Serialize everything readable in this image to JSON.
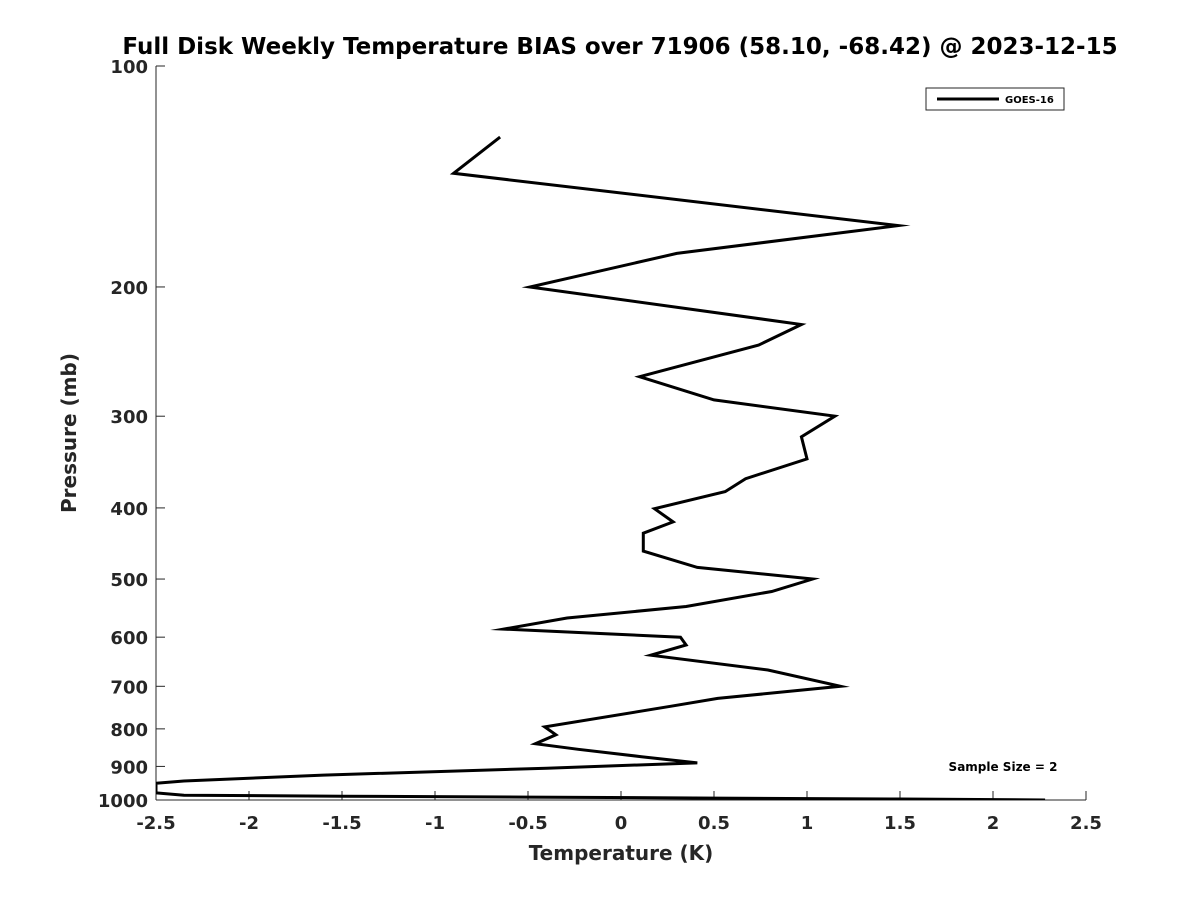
{
  "chart_data": {
    "type": "line",
    "title": "Full Disk Weekly Temperature BIAS over 71906 (58.10, -68.42) @ 2023-12-15",
    "xlabel": "Temperature (K)",
    "ylabel": "Pressure (mb)",
    "xlim": [
      -2.5,
      2.5
    ],
    "ylim": [
      1000,
      100
    ],
    "y_scale": "log",
    "y_reversed": true,
    "grid": false,
    "legend_position": "top-right",
    "x_ticks": [
      -2.5,
      -2,
      -1.5,
      -1,
      -0.5,
      0,
      0.5,
      1,
      1.5,
      2,
      2.5
    ],
    "x_tick_labels": [
      "-2.5",
      "-2",
      "-1.5",
      "-1",
      "-0.5",
      "0",
      "0.5",
      "1",
      "1.5",
      "2",
      "2.5"
    ],
    "y_ticks": [
      100,
      200,
      300,
      400,
      500,
      600,
      700,
      800,
      900,
      1000
    ],
    "y_tick_labels": [
      "100",
      "200",
      "300",
      "400",
      "500",
      "600",
      "700",
      "800",
      "900",
      "1000"
    ],
    "annotation": "Sample Size = 2",
    "series": [
      {
        "name": "GOES-16",
        "color": "#000000",
        "points": [
          {
            "x": -0.65,
            "y": 125
          },
          {
            "x": -0.9,
            "y": 140
          },
          {
            "x": 1.49,
            "y": 165
          },
          {
            "x": 0.3,
            "y": 180
          },
          {
            "x": -0.49,
            "y": 200
          },
          {
            "x": 0.97,
            "y": 225
          },
          {
            "x": 0.74,
            "y": 240
          },
          {
            "x": 0.1,
            "y": 265
          },
          {
            "x": 0.5,
            "y": 285
          },
          {
            "x": 1.15,
            "y": 300
          },
          {
            "x": 0.97,
            "y": 320
          },
          {
            "x": 1.0,
            "y": 343
          },
          {
            "x": 0.67,
            "y": 365
          },
          {
            "x": 0.56,
            "y": 380
          },
          {
            "x": 0.18,
            "y": 401
          },
          {
            "x": 0.28,
            "y": 418
          },
          {
            "x": 0.12,
            "y": 433
          },
          {
            "x": 0.12,
            "y": 458
          },
          {
            "x": 0.41,
            "y": 482
          },
          {
            "x": 1.03,
            "y": 500
          },
          {
            "x": 0.81,
            "y": 520
          },
          {
            "x": 0.35,
            "y": 545
          },
          {
            "x": -0.29,
            "y": 565
          },
          {
            "x": -0.63,
            "y": 585
          },
          {
            "x": 0.32,
            "y": 600
          },
          {
            "x": 0.35,
            "y": 615
          },
          {
            "x": 0.16,
            "y": 635
          },
          {
            "x": 0.79,
            "y": 665
          },
          {
            "x": 1.18,
            "y": 700
          },
          {
            "x": 0.52,
            "y": 727
          },
          {
            "x": 0.27,
            "y": 745
          },
          {
            "x": -0.41,
            "y": 795
          },
          {
            "x": -0.35,
            "y": 815
          },
          {
            "x": -0.46,
            "y": 838
          },
          {
            "x": -0.23,
            "y": 853
          },
          {
            "x": 0.11,
            "y": 873
          },
          {
            "x": 0.41,
            "y": 890
          },
          {
            "x": -0.4,
            "y": 905
          },
          {
            "x": -1.6,
            "y": 925
          },
          {
            "x": -2.35,
            "y": 942
          },
          {
            "x": -2.5,
            "y": 949
          },
          {
            "x": -2.5,
            "y": 978
          },
          {
            "x": -2.35,
            "y": 985
          },
          {
            "x": -1.5,
            "y": 988
          },
          {
            "x": -0.5,
            "y": 991
          },
          {
            "x": 0.5,
            "y": 994
          },
          {
            "x": 1.5,
            "y": 997
          },
          {
            "x": 2.28,
            "y": 1000
          }
        ]
      }
    ]
  }
}
